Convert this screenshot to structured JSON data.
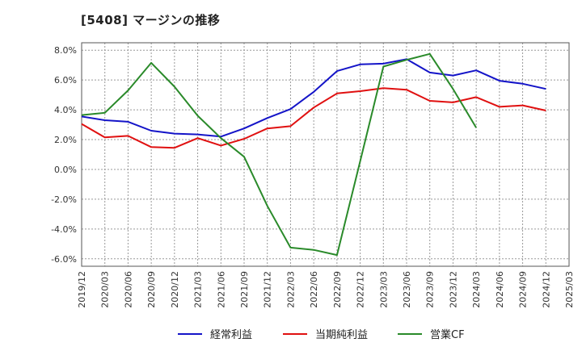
{
  "chart_data": {
    "type": "line",
    "title": "[5408]  マージンの推移",
    "x": [
      "2019/12",
      "2020/03",
      "2020/06",
      "2020/09",
      "2020/12",
      "2021/03",
      "2021/06",
      "2021/09",
      "2021/12",
      "2022/03",
      "2022/06",
      "2022/09",
      "2022/12",
      "2023/03",
      "2023/06",
      "2023/09",
      "2023/12",
      "2024/03",
      "2024/06",
      "2024/09",
      "2024/12",
      "2025/03"
    ],
    "ylim": [
      -6.5,
      8.5
    ],
    "yticks": [
      8.0,
      6.0,
      4.0,
      2.0,
      0.0,
      -2.0,
      -4.0,
      -6.0
    ],
    "ytick_labels": [
      "8.0%",
      "6.0%",
      "4.0%",
      "2.0%",
      "0.0%",
      "-2.0%",
      "-4.0%",
      "-6.0%"
    ],
    "grid": true,
    "legend_position": "bottom",
    "series": [
      {
        "name": "経常利益",
        "color": "#1414c8",
        "values": [
          3.55,
          3.3,
          3.2,
          2.6,
          2.4,
          2.35,
          2.2,
          2.75,
          3.45,
          4.05,
          5.2,
          6.6,
          7.05,
          7.1,
          7.4,
          6.5,
          6.3,
          6.65,
          5.95,
          5.75,
          5.4,
          null
        ]
      },
      {
        "name": "当期純利益",
        "color": "#e01010",
        "values": [
          3.05,
          2.15,
          2.25,
          1.5,
          1.45,
          2.1,
          1.6,
          2.05,
          2.75,
          2.9,
          4.15,
          5.1,
          5.25,
          5.45,
          5.35,
          4.6,
          4.5,
          4.85,
          4.2,
          4.3,
          3.95,
          null
        ]
      },
      {
        "name": "営業CF",
        "color": "#2a8a2a",
        "values": [
          3.65,
          3.8,
          5.3,
          7.15,
          5.55,
          3.6,
          2.1,
          0.85,
          -2.45,
          -5.25,
          -5.4,
          -5.75,
          0.55,
          6.9,
          7.35,
          7.75,
          5.4,
          2.8,
          null,
          null,
          null,
          null
        ]
      }
    ]
  }
}
